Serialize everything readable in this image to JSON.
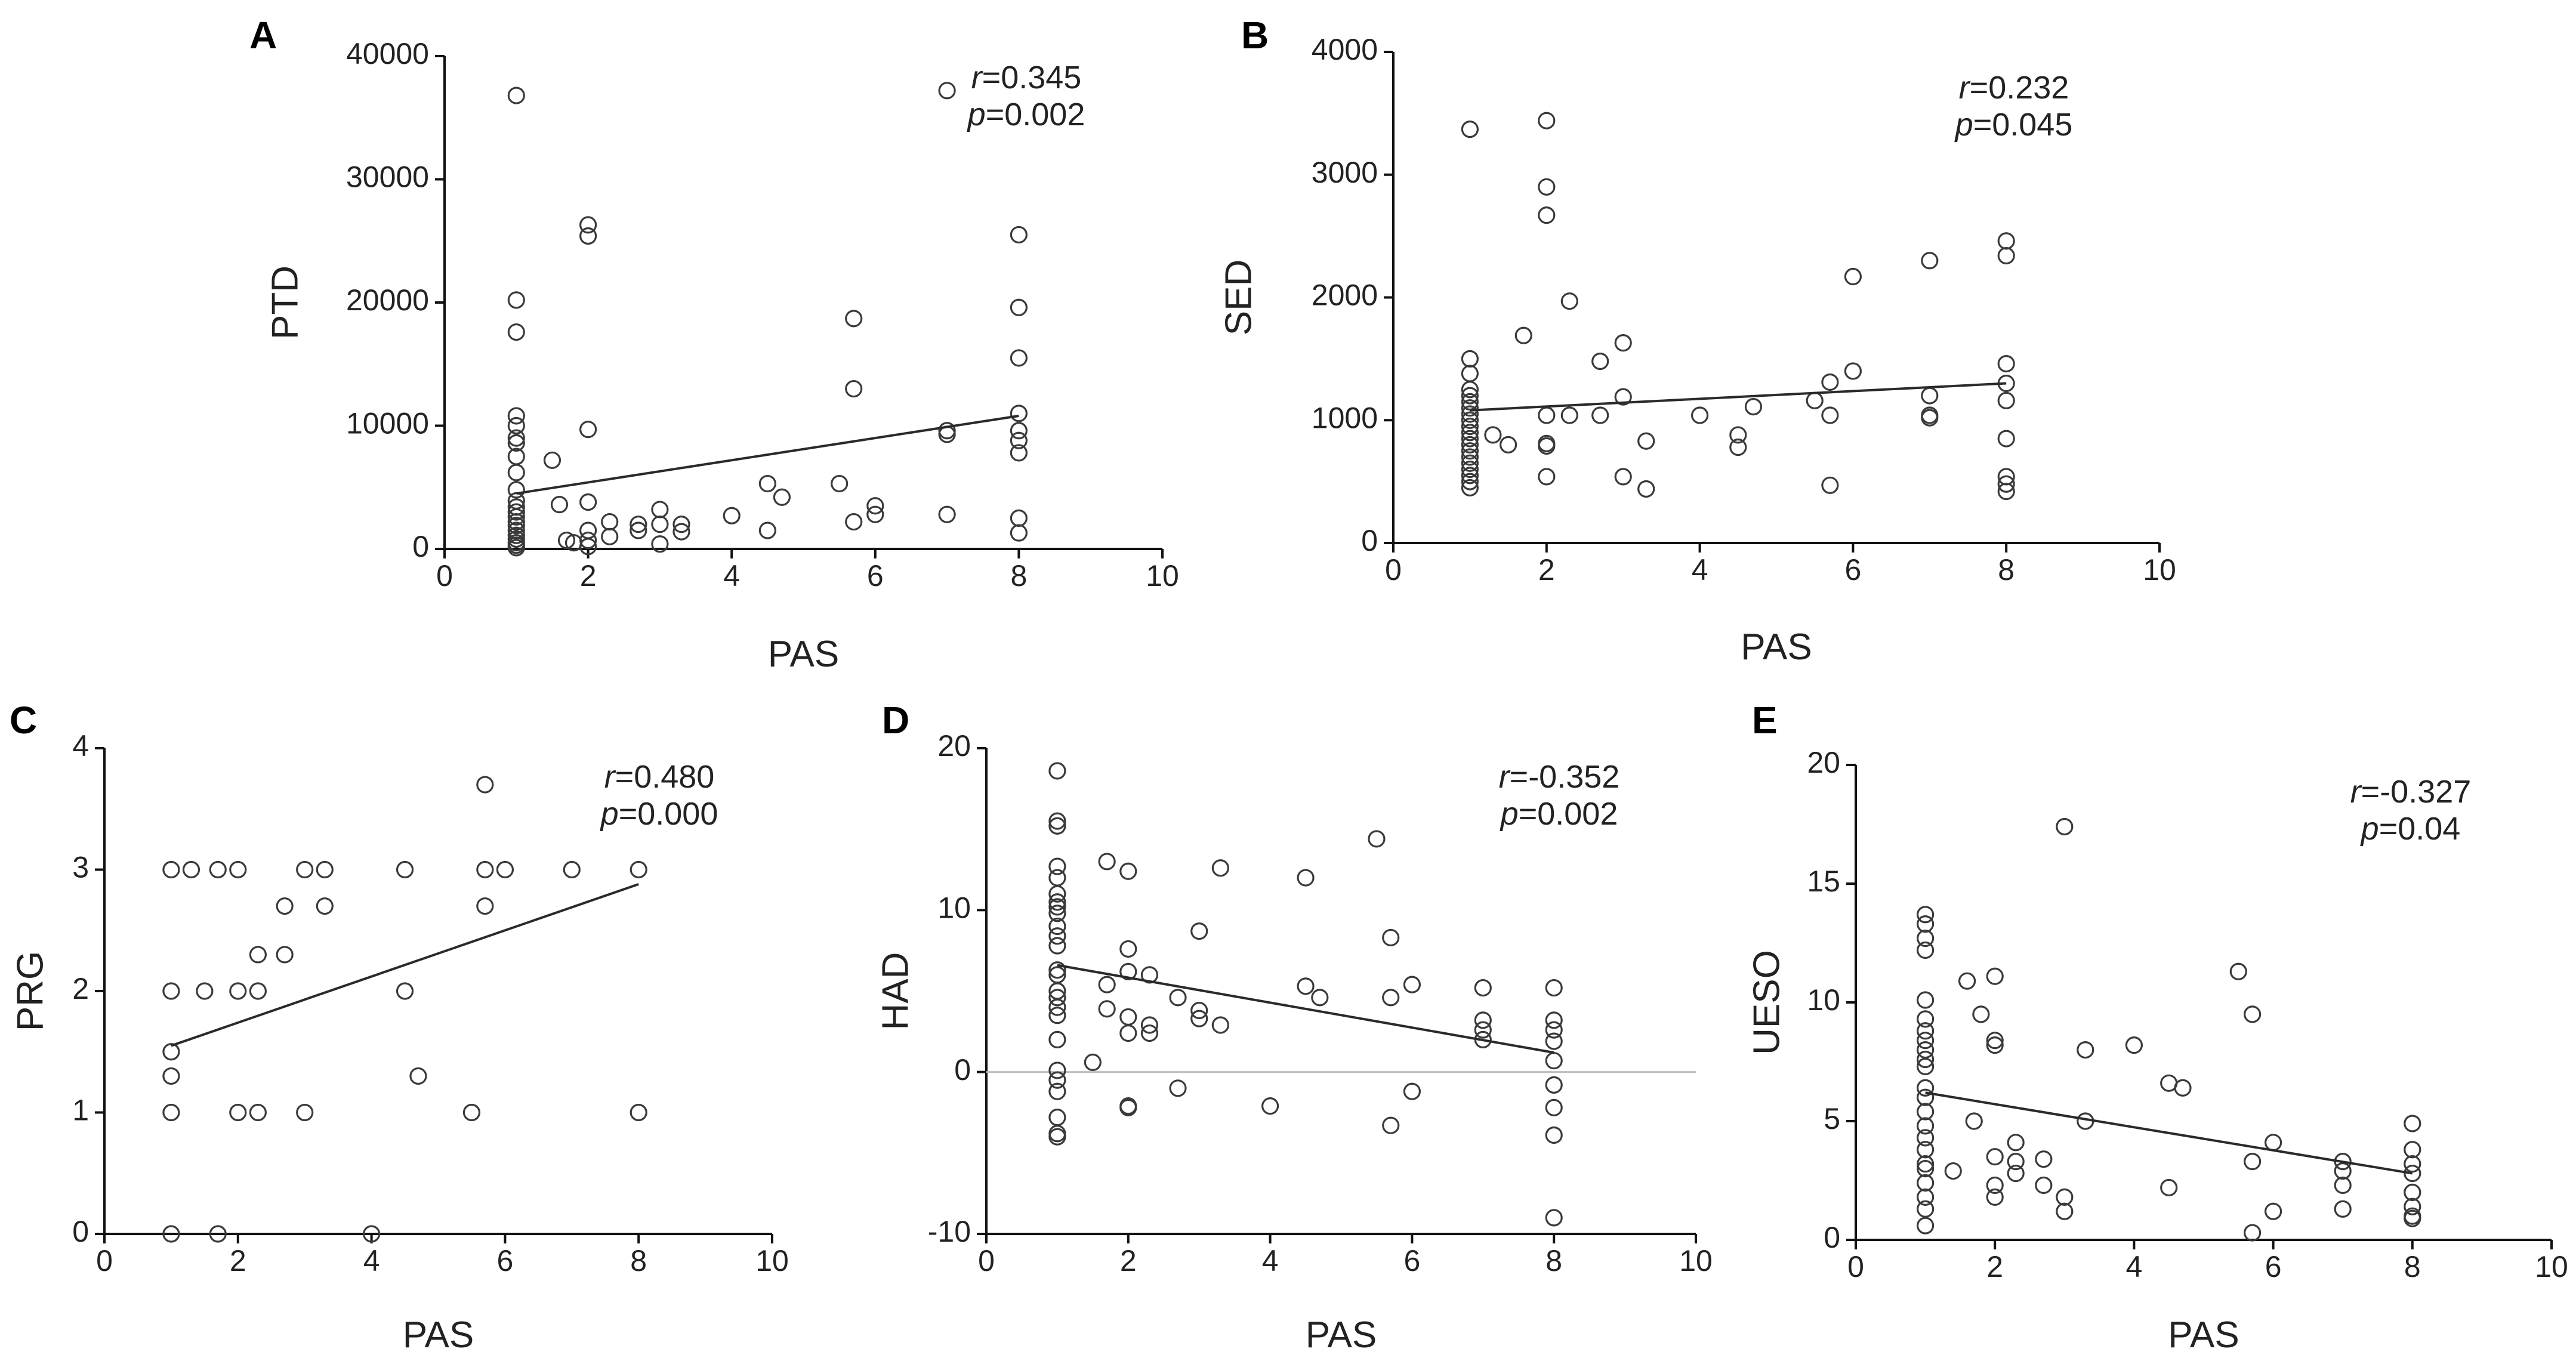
{
  "chart_data": [
    {
      "id": "A",
      "type": "scatter",
      "panel_label": "A",
      "xlabel": "PAS",
      "ylabel": "PTD",
      "xlim": [
        0,
        10
      ],
      "ylim": [
        0,
        40000
      ],
      "xticks": [
        0,
        2,
        4,
        6,
        8,
        10
      ],
      "yticks": [
        0,
        10000,
        20000,
        30000,
        40000
      ],
      "grid": false,
      "stats": {
        "r_symbol": "r",
        "r_value": "=0.345",
        "p_symbol": "p",
        "p_value": "=0.002"
      },
      "fit": [
        [
          1,
          4500
        ],
        [
          8,
          10800
        ]
      ],
      "points": [
        [
          1,
          36800
        ],
        [
          1,
          20200
        ],
        [
          1,
          17600
        ],
        [
          1,
          10800
        ],
        [
          1,
          10000
        ],
        [
          1,
          9000
        ],
        [
          1,
          8600
        ],
        [
          1,
          7500
        ],
        [
          1,
          6200
        ],
        [
          1,
          4800
        ],
        [
          1,
          3900
        ],
        [
          1,
          3400
        ],
        [
          1,
          3000
        ],
        [
          1,
          2600
        ],
        [
          1,
          2200
        ],
        [
          1,
          1900
        ],
        [
          1,
          1500
        ],
        [
          1,
          1100
        ],
        [
          1,
          800
        ],
        [
          1,
          500
        ],
        [
          1,
          300
        ],
        [
          1,
          100
        ],
        [
          1.5,
          7200
        ],
        [
          1.6,
          3600
        ],
        [
          1.7,
          700
        ],
        [
          1.8,
          500
        ],
        [
          2,
          26300
        ],
        [
          2,
          25400
        ],
        [
          2,
          9700
        ],
        [
          2,
          3800
        ],
        [
          2,
          1500
        ],
        [
          2,
          700
        ],
        [
          2,
          200
        ],
        [
          2.3,
          2200
        ],
        [
          2.3,
          1000
        ],
        [
          2.7,
          2000
        ],
        [
          2.7,
          1500
        ],
        [
          3,
          3200
        ],
        [
          3,
          2000
        ],
        [
          3,
          400
        ],
        [
          3.3,
          2000
        ],
        [
          3.3,
          1400
        ],
        [
          4,
          2700
        ],
        [
          4.5,
          5300
        ],
        [
          4.5,
          1500
        ],
        [
          4.7,
          4200
        ],
        [
          5.5,
          5300
        ],
        [
          5.7,
          18700
        ],
        [
          5.7,
          13000
        ],
        [
          5.7,
          2200
        ],
        [
          6,
          3500
        ],
        [
          6,
          2800
        ],
        [
          7,
          37200
        ],
        [
          7,
          9600
        ],
        [
          7,
          9300
        ],
        [
          7,
          2800
        ],
        [
          8,
          25500
        ],
        [
          8,
          19600
        ],
        [
          8,
          15500
        ],
        [
          8,
          11000
        ],
        [
          8,
          9600
        ],
        [
          8,
          8800
        ],
        [
          8,
          7800
        ],
        [
          8,
          2500
        ],
        [
          8,
          1300
        ]
      ]
    },
    {
      "id": "B",
      "type": "scatter",
      "panel_label": "B",
      "xlabel": "PAS",
      "ylabel": "SED",
      "xlim": [
        0,
        10
      ],
      "ylim": [
        0,
        4000
      ],
      "xticks": [
        0,
        2,
        4,
        6,
        8,
        10
      ],
      "yticks": [
        0,
        1000,
        2000,
        3000,
        4000
      ],
      "grid": false,
      "stats": {
        "r_symbol": "r",
        "r_value": "=0.232",
        "p_symbol": "p",
        "p_value": "=0.045"
      },
      "fit": [
        [
          1,
          1080
        ],
        [
          8,
          1300
        ]
      ],
      "points": [
        [
          1,
          3370
        ],
        [
          1,
          1500
        ],
        [
          1,
          1380
        ],
        [
          1,
          1250
        ],
        [
          1,
          1200
        ],
        [
          1,
          1150
        ],
        [
          1,
          1100
        ],
        [
          1,
          1050
        ],
        [
          1,
          1000
        ],
        [
          1,
          950
        ],
        [
          1,
          900
        ],
        [
          1,
          850
        ],
        [
          1,
          800
        ],
        [
          1,
          750
        ],
        [
          1,
          700
        ],
        [
          1,
          650
        ],
        [
          1,
          600
        ],
        [
          1,
          550
        ],
        [
          1,
          500
        ],
        [
          1,
          450
        ],
        [
          1.3,
          880
        ],
        [
          1.5,
          800
        ],
        [
          1.7,
          1690
        ],
        [
          2,
          3440
        ],
        [
          2,
          2900
        ],
        [
          2,
          2670
        ],
        [
          2,
          1040
        ],
        [
          2,
          810
        ],
        [
          2,
          790
        ],
        [
          2,
          540
        ],
        [
          2.3,
          1970
        ],
        [
          2.3,
          1040
        ],
        [
          2.7,
          1480
        ],
        [
          2.7,
          1040
        ],
        [
          3,
          1630
        ],
        [
          3,
          1190
        ],
        [
          3,
          540
        ],
        [
          3.3,
          830
        ],
        [
          3.3,
          440
        ],
        [
          4,
          1040
        ],
        [
          4.5,
          880
        ],
        [
          4.5,
          780
        ],
        [
          4.7,
          1110
        ],
        [
          5.5,
          1160
        ],
        [
          5.7,
          1310
        ],
        [
          5.7,
          1040
        ],
        [
          5.7,
          470
        ],
        [
          6,
          2170
        ],
        [
          6,
          1400
        ],
        [
          7,
          2300
        ],
        [
          7,
          1200
        ],
        [
          7,
          1040
        ],
        [
          7,
          1020
        ],
        [
          8,
          2460
        ],
        [
          8,
          2340
        ],
        [
          8,
          1460
        ],
        [
          8,
          1300
        ],
        [
          8,
          1160
        ],
        [
          8,
          850
        ],
        [
          8,
          540
        ],
        [
          8,
          480
        ],
        [
          8,
          420
        ]
      ]
    },
    {
      "id": "C",
      "type": "scatter",
      "panel_label": "C",
      "xlabel": "PAS",
      "ylabel": "PRG",
      "xlim": [
        0,
        10
      ],
      "ylim": [
        0,
        4
      ],
      "xticks": [
        0,
        2,
        4,
        6,
        8,
        10
      ],
      "yticks": [
        0,
        1,
        2,
        3,
        4
      ],
      "grid": false,
      "stats": {
        "r_symbol": "r",
        "r_value": "=0.480",
        "p_symbol": "p",
        "p_value": "=0.000"
      },
      "fit": [
        [
          1,
          1.55
        ],
        [
          8,
          2.88
        ]
      ],
      "points": [
        [
          1,
          3
        ],
        [
          1,
          2
        ],
        [
          1,
          1.5
        ],
        [
          1,
          1.3
        ],
        [
          1,
          1
        ],
        [
          1,
          0
        ],
        [
          1.3,
          3
        ],
        [
          1.5,
          2
        ],
        [
          1.7,
          3
        ],
        [
          1.7,
          0
        ],
        [
          2,
          3
        ],
        [
          2,
          2
        ],
        [
          2,
          1
        ],
        [
          2.3,
          2.3
        ],
        [
          2.3,
          2
        ],
        [
          2.3,
          1
        ],
        [
          2.7,
          2.7
        ],
        [
          2.7,
          2.3
        ],
        [
          3,
          3
        ],
        [
          3,
          1
        ],
        [
          3.3,
          3
        ],
        [
          3.3,
          2.7
        ],
        [
          4,
          0
        ],
        [
          4.5,
          3
        ],
        [
          4.5,
          2
        ],
        [
          4.7,
          1.3
        ],
        [
          5.5,
          1
        ],
        [
          5.7,
          3.7
        ],
        [
          5.7,
          3
        ],
        [
          5.7,
          2.7
        ],
        [
          6,
          3
        ],
        [
          7,
          3
        ],
        [
          8,
          3
        ],
        [
          8,
          1
        ]
      ]
    },
    {
      "id": "D",
      "type": "scatter",
      "panel_label": "D",
      "xlabel": "PAS",
      "ylabel": "HAD",
      "xlim": [
        0,
        10
      ],
      "ylim": [
        -10,
        20
      ],
      "xticks": [
        0,
        2,
        4,
        6,
        8,
        10
      ],
      "yticks": [
        -10,
        0,
        10,
        20
      ],
      "zero_line": true,
      "grid": false,
      "stats": {
        "r_symbol": "r",
        "r_value": "=-0.352",
        "p_symbol": "p",
        "p_value": "=0.002"
      },
      "fit": [
        [
          1,
          6.6
        ],
        [
          8,
          1.2
        ]
      ],
      "points": [
        [
          1,
          18.6
        ],
        [
          1,
          15.5
        ],
        [
          1,
          15.2
        ],
        [
          1,
          12.7
        ],
        [
          1,
          12
        ],
        [
          1,
          11
        ],
        [
          1,
          10.5
        ],
        [
          1,
          10.2
        ],
        [
          1,
          9.8
        ],
        [
          1,
          9
        ],
        [
          1,
          8.4
        ],
        [
          1,
          7.8
        ],
        [
          1,
          6.3
        ],
        [
          1,
          6
        ],
        [
          1,
          5
        ],
        [
          1,
          4.6
        ],
        [
          1,
          4
        ],
        [
          1,
          3.5
        ],
        [
          1,
          2
        ],
        [
          1,
          0.1
        ],
        [
          1,
          -0.5
        ],
        [
          1,
          -1.2
        ],
        [
          1,
          -2.8
        ],
        [
          1,
          -3.8
        ],
        [
          1,
          -4.0
        ],
        [
          1.5,
          0.6
        ],
        [
          1.7,
          5.4
        ],
        [
          1.7,
          13
        ],
        [
          1.7,
          3.9
        ],
        [
          2,
          12.4
        ],
        [
          2,
          7.6
        ],
        [
          2,
          6.2
        ],
        [
          2,
          3.4
        ],
        [
          2,
          2.4
        ],
        [
          2,
          -2.1
        ],
        [
          2,
          -2.2
        ],
        [
          2.3,
          6
        ],
        [
          2.3,
          2.9
        ],
        [
          2.3,
          2.4
        ],
        [
          2.7,
          4.6
        ],
        [
          2.7,
          -1.0
        ],
        [
          3,
          8.7
        ],
        [
          3,
          3.8
        ],
        [
          3,
          3.3
        ],
        [
          3.3,
          12.6
        ],
        [
          3.3,
          2.9
        ],
        [
          4,
          -2.1
        ],
        [
          4.5,
          12
        ],
        [
          4.5,
          5.3
        ],
        [
          4.7,
          4.6
        ],
        [
          5.5,
          14.4
        ],
        [
          5.7,
          8.3
        ],
        [
          5.7,
          4.6
        ],
        [
          5.7,
          -3.3
        ],
        [
          6,
          5.4
        ],
        [
          6,
          -1.2
        ],
        [
          7,
          5.2
        ],
        [
          7,
          3.2
        ],
        [
          7,
          2.6
        ],
        [
          7,
          2.0
        ],
        [
          8,
          5.2
        ],
        [
          8,
          3.2
        ],
        [
          8,
          2.6
        ],
        [
          8,
          1.9
        ],
        [
          8,
          0.7
        ],
        [
          8,
          -0.8
        ],
        [
          8,
          -2.2
        ],
        [
          8,
          -3.9
        ],
        [
          8,
          -9.0
        ]
      ]
    },
    {
      "id": "E",
      "type": "scatter",
      "panel_label": "E",
      "xlabel": "PAS",
      "ylabel": "UESO",
      "xlim": [
        0,
        10
      ],
      "ylim": [
        0,
        20
      ],
      "xticks": [
        0,
        2,
        4,
        6,
        8,
        10
      ],
      "yticks": [
        0,
        5,
        10,
        15,
        20
      ],
      "grid": false,
      "stats": {
        "r_symbol": "r",
        "r_value": "=-0.327",
        "p_symbol": "p",
        "p_value": "=0.04"
      },
      "fit": [
        [
          1,
          6.2
        ],
        [
          8,
          2.8
        ]
      ],
      "points": [
        [
          1,
          13.7
        ],
        [
          1,
          13.3
        ],
        [
          1,
          12.7
        ],
        [
          1,
          12.2
        ],
        [
          1,
          10.1
        ],
        [
          1,
          9.3
        ],
        [
          1,
          8.8
        ],
        [
          1,
          8.4
        ],
        [
          1,
          8
        ],
        [
          1,
          7.6
        ],
        [
          1,
          7.3
        ],
        [
          1,
          6.4
        ],
        [
          1,
          6
        ],
        [
          1,
          5.4
        ],
        [
          1,
          4.8
        ],
        [
          1,
          4.3
        ],
        [
          1,
          3.8
        ],
        [
          1,
          3.2
        ],
        [
          1,
          3
        ],
        [
          1,
          2.4
        ],
        [
          1,
          1.8
        ],
        [
          1,
          1.3
        ],
        [
          1,
          0.6
        ],
        [
          1.4,
          2.9
        ],
        [
          1.6,
          10.9
        ],
        [
          1.7,
          5
        ],
        [
          1.8,
          9.5
        ],
        [
          2,
          11.1
        ],
        [
          2,
          8.4
        ],
        [
          2,
          8.2
        ],
        [
          2,
          3.5
        ],
        [
          2,
          2.3
        ],
        [
          2,
          1.8
        ],
        [
          2.3,
          4.1
        ],
        [
          2.3,
          3.3
        ],
        [
          2.3,
          2.8
        ],
        [
          2.7,
          3.4
        ],
        [
          2.7,
          2.3
        ],
        [
          3,
          17.4
        ],
        [
          3,
          1.8
        ],
        [
          3,
          1.2
        ],
        [
          3.3,
          8
        ],
        [
          3.3,
          5
        ],
        [
          4,
          8.2
        ],
        [
          4.5,
          6.6
        ],
        [
          4.5,
          2.2
        ],
        [
          4.7,
          6.4
        ],
        [
          5.5,
          11.3
        ],
        [
          5.7,
          9.5
        ],
        [
          5.7,
          3.3
        ],
        [
          5.7,
          0.3
        ],
        [
          6,
          4.1
        ],
        [
          6,
          1.2
        ],
        [
          7,
          3.3
        ],
        [
          7,
          2.9
        ],
        [
          7,
          2.3
        ],
        [
          7,
          1.3
        ],
        [
          8,
          4.9
        ],
        [
          8,
          3.8
        ],
        [
          8,
          3.2
        ],
        [
          8,
          2.8
        ],
        [
          8,
          2
        ],
        [
          8,
          1.4
        ],
        [
          8,
          1
        ],
        [
          8,
          0.9
        ]
      ]
    }
  ]
}
